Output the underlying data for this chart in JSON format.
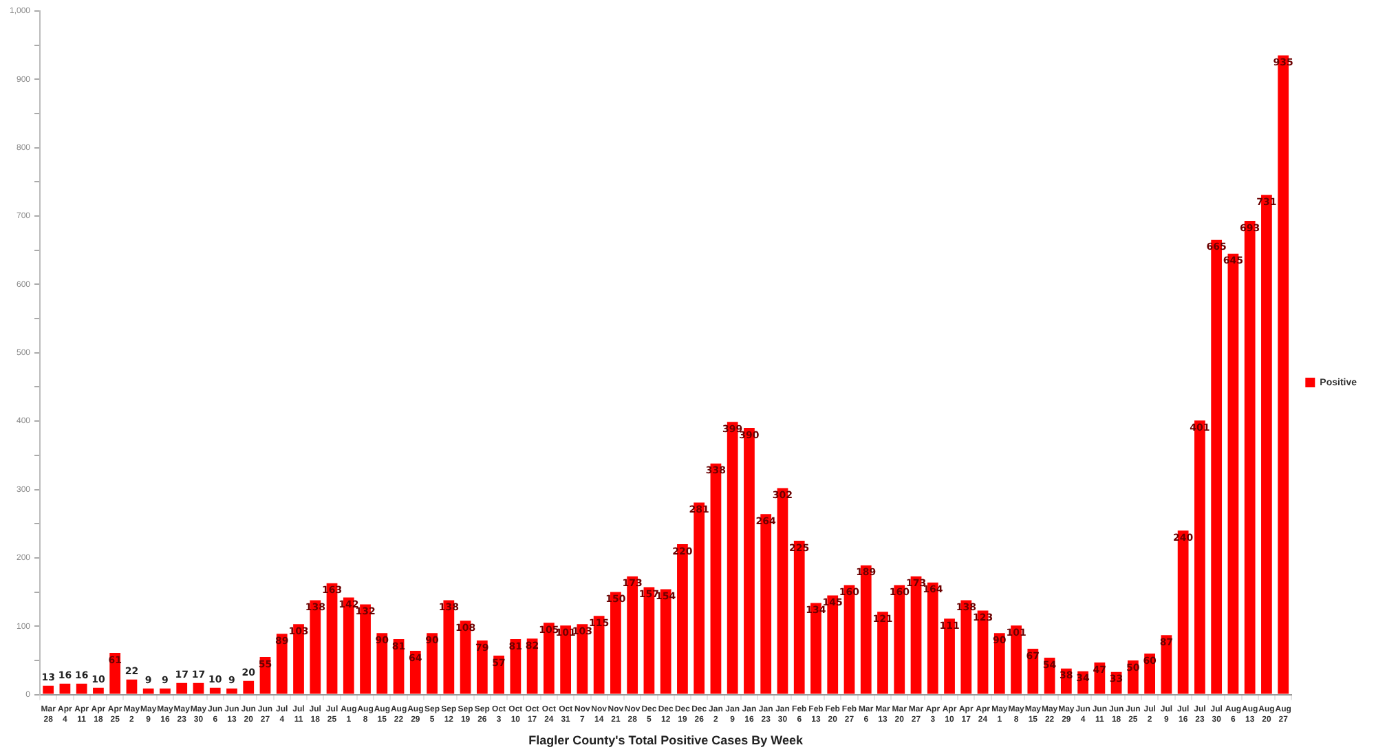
{
  "chart_data": {
    "type": "bar",
    "xlabel": "Flagler County's Total Positive Cases By Week",
    "categories": [
      "Mar 28",
      "Apr 4",
      "Apr 11",
      "Apr 18",
      "Apr 25",
      "May 2",
      "May 9",
      "May 16",
      "May 23",
      "May 30",
      "Jun 6",
      "Jun 13",
      "Jun 20",
      "Jun 27",
      "Jul 4",
      "Jul 11",
      "Jul 18",
      "Jul 25",
      "Aug 1",
      "Aug 8",
      "Aug 15",
      "Aug 22",
      "Aug 29",
      "Sep 5",
      "Sep 12",
      "Sep 19",
      "Sep 26",
      "Oct 3",
      "Oct 10",
      "Oct 17",
      "Oct 24",
      "Oct 31",
      "Nov 7",
      "Nov 14",
      "Nov 21",
      "Nov 28",
      "Dec 5",
      "Dec 12",
      "Dec 19",
      "Dec 26",
      "Jan 2",
      "Jan 9",
      "Jan 16",
      "Jan 23",
      "Jan 30",
      "Feb 6",
      "Feb 13",
      "Feb 20",
      "Feb 27",
      "Mar 6",
      "Mar 13",
      "Mar 20",
      "Mar 27",
      "Apr 3",
      "Apr 10",
      "Apr 17",
      "Apr 24",
      "May 1",
      "May 8",
      "May 15",
      "May 22",
      "May 29",
      "Jun 4",
      "Jun 11",
      "Jun 18",
      "Jun 25",
      "Jul 2",
      "Jul 9",
      "Jul 16",
      "Jul 23",
      "Jul 30",
      "Aug 6",
      "Aug 13",
      "Aug 20",
      "Aug 27"
    ],
    "series": [
      {
        "name": "Positive",
        "color": "#ff0000",
        "values": [
          13,
          16,
          16,
          10,
          61,
          22,
          9,
          9,
          17,
          17,
          10,
          9,
          20,
          55,
          89,
          103,
          138,
          163,
          142,
          132,
          90,
          81,
          64,
          90,
          138,
          108,
          79,
          57,
          81,
          82,
          105,
          101,
          103,
          115,
          150,
          173,
          157,
          154,
          220,
          281,
          338,
          399,
          390,
          264,
          302,
          225,
          134,
          145,
          160,
          189,
          121,
          160,
          173,
          164,
          111,
          138,
          123,
          90,
          101,
          67,
          54,
          38,
          34,
          47,
          33,
          50,
          60,
          87,
          240,
          401,
          665,
          645,
          693,
          731,
          935
        ]
      }
    ],
    "ylim": [
      0,
      1000
    ],
    "yticks": [
      0,
      {
        "value": 50,
        "label": null
      },
      100,
      {
        "value": 150,
        "label": null
      },
      200,
      {
        "value": 250,
        "label": null
      },
      300,
      {
        "value": 350,
        "label": null
      },
      400,
      {
        "value": 450,
        "label": null
      },
      500,
      {
        "value": 550,
        "label": null
      },
      600,
      {
        "value": 650,
        "label": null
      },
      700,
      {
        "value": 750,
        "label": null
      },
      800,
      {
        "value": 850,
        "label": null
      },
      900,
      {
        "value": 950,
        "label": null
      },
      {
        "value": 1000,
        "label": "1,000"
      }
    ],
    "grid": false,
    "legend": "right",
    "data_labels": true
  }
}
